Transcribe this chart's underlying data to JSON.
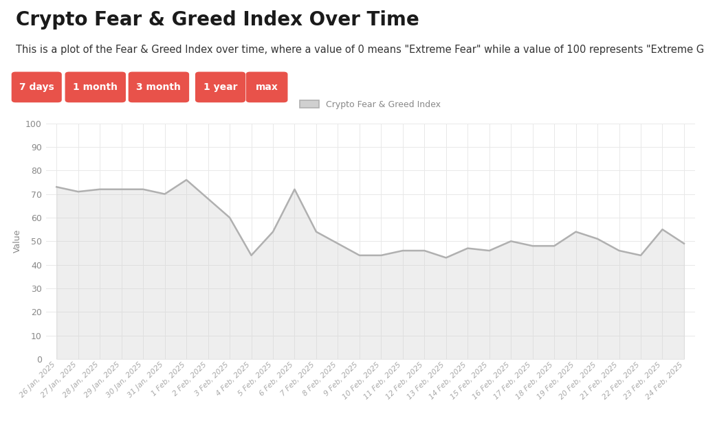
{
  "title": "Crypto Fear & Greed Index Over Time",
  "subtitle": "This is a plot of the Fear & Greed Index over time, where a value of 0 means \"Extreme Fear\" while a value of 100 represents \"Extreme Greed\".",
  "legend_label": "Crypto Fear & Greed Index",
  "ylabel": "Value",
  "buttons": [
    "7 days",
    "1 month",
    "3 month",
    "1 year",
    "max"
  ],
  "button_color": "#e8524a",
  "button_text_color": "#ffffff",
  "dates": [
    "26 Jan, 2025",
    "27 Jan, 2025",
    "28 Jan, 2025",
    "29 Jan, 2025",
    "30 Jan, 2025",
    "31 Jan, 2025",
    "1 Feb, 2025",
    "2 Feb, 2025",
    "3 Feb, 2025",
    "4 Feb, 2025",
    "5 Feb, 2025",
    "6 Feb, 2025",
    "7 Feb, 2025",
    "8 Feb, 2025",
    "9 Feb, 2025",
    "10 Feb, 2025",
    "11 Feb, 2025",
    "12 Feb, 2025",
    "13 Feb, 2025",
    "14 Feb, 2025",
    "15 Feb, 2025",
    "16 Feb, 2025",
    "17 Feb, 2025",
    "18 Feb, 2025",
    "19 Feb, 2025",
    "20 Feb, 2025",
    "21 Feb, 2025",
    "22 Feb, 2025",
    "23 Feb, 2025",
    "24 Feb, 2025"
  ],
  "values": [
    73,
    71,
    72,
    72,
    72,
    70,
    76,
    68,
    60,
    44,
    54,
    72,
    54,
    49,
    44,
    44,
    46,
    46,
    43,
    47,
    46,
    50,
    48,
    48,
    54,
    51,
    46,
    44,
    55,
    49
  ],
  "line_color": "#b0b0b0",
  "line_width": 1.8,
  "fill_color": "#d0d0d0",
  "fill_alpha": 0.35,
  "ylim": [
    0,
    100
  ],
  "yticks": [
    0,
    10,
    20,
    30,
    40,
    50,
    60,
    70,
    80,
    90,
    100
  ],
  "grid_color": "#e8e8e8",
  "background_color": "#ffffff",
  "title_fontsize": 20,
  "subtitle_fontsize": 10.5,
  "ylabel_fontsize": 9,
  "tick_fontsize": 9,
  "legend_fontsize": 9,
  "btn_fontsize": 10
}
